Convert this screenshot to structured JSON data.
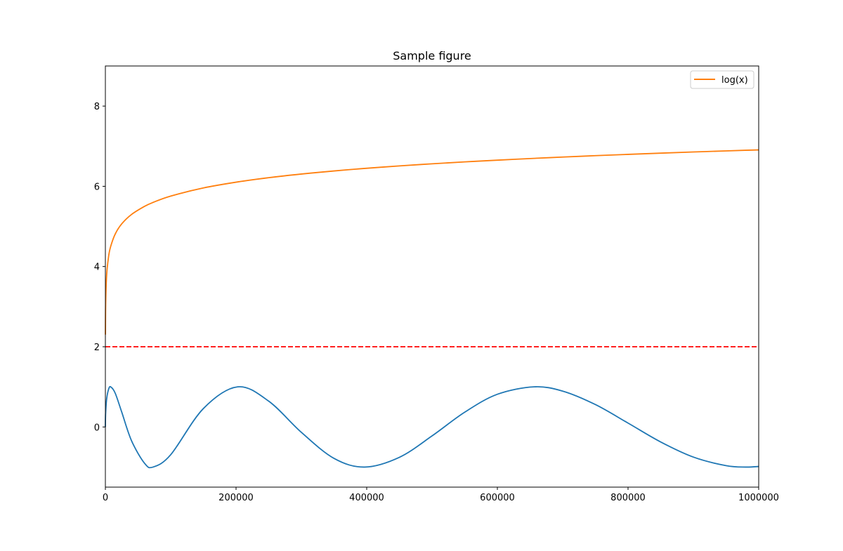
{
  "chart_data": {
    "type": "line",
    "title": "Sample figure",
    "xlabel": "",
    "ylabel": "",
    "xlim": [
      0,
      1000000
    ],
    "ylim": [
      -1.5,
      9
    ],
    "xticks": [
      0,
      200000,
      400000,
      600000,
      800000,
      1000000
    ],
    "xtick_labels": [
      "0",
      "200000",
      "400000",
      "600000",
      "800000",
      "1000000"
    ],
    "yticks": [
      0,
      2,
      4,
      6,
      8
    ],
    "ytick_labels": [
      "0",
      "2",
      "4",
      "6",
      "8"
    ],
    "grid": false,
    "legend": {
      "placement": "top-right",
      "entries": [
        "log(x)"
      ]
    },
    "x": [
      0,
      100,
      500,
      2000,
      5000,
      8100,
      15000,
      25000,
      40000,
      60000,
      72900,
      100000,
      150000,
      202500,
      250000,
      300000,
      350000,
      396900,
      450000,
      500000,
      550000,
      600000,
      656100,
      700000,
      750000,
      800000,
      850000,
      900000,
      950000,
      980100,
      1000000
    ],
    "series": [
      {
        "color": "#1f77b4",
        "style": "solid",
        "values": [
          0,
          0.174,
          0.38,
          0.703,
          0.944,
          1,
          0.844,
          0.373,
          -0.342,
          -0.906,
          -1,
          -0.692,
          0.459,
          1,
          0.643,
          -0.134,
          -0.784,
          -1,
          -0.757,
          -0.223,
          0.368,
          0.815,
          1,
          0.894,
          0.559,
          0.097,
          -0.374,
          -0.751,
          -0.964,
          -1,
          -0.985
        ]
      },
      {
        "name": "log(x)",
        "color": "#ff7f0e",
        "style": "solid",
        "values": [
          null,
          2.303,
          3.107,
          3.8,
          4.259,
          4.5,
          4.808,
          5.063,
          5.298,
          5.501,
          5.598,
          5.756,
          5.959,
          6.109,
          6.215,
          6.306,
          6.383,
          6.446,
          6.508,
          6.561,
          6.609,
          6.652,
          6.697,
          6.729,
          6.764,
          6.796,
          6.827,
          6.856,
          6.883,
          6.899,
          6.908
        ]
      }
    ],
    "hlines": [
      {
        "y": 2,
        "color": "#ff0000",
        "style": "dashed"
      }
    ]
  }
}
